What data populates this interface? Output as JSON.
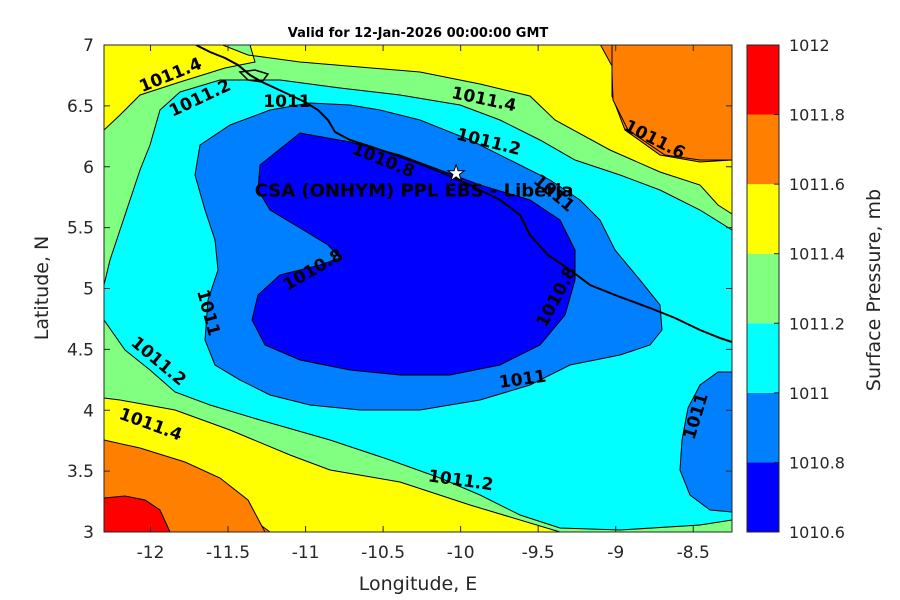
{
  "chart_data": {
    "type": "contour",
    "title": "Valid for 12-Jan-2026 00:00:00 GMT",
    "xlabel": "Longitude, E",
    "ylabel": "Latitude, N",
    "xlim": [
      -12.3,
      -8.25
    ],
    "ylim": [
      3,
      7
    ],
    "xticks": [
      "-12",
      "-11.5",
      "-11",
      "-10.5",
      "-10",
      "-9.5",
      "-9",
      "-8.5"
    ],
    "yticks": [
      "3",
      "3.5",
      "4",
      "4.5",
      "5",
      "5.5",
      "6",
      "6.5",
      "7"
    ],
    "colorbar": {
      "label": "Surface Pressure, mb",
      "ticks": [
        "1010.6",
        "1010.8",
        "1011",
        "1011.2",
        "1011.4",
        "1011.6",
        "1011.8",
        "1012"
      ],
      "levels": [
        1010.6,
        1010.8,
        1011.0,
        1011.2,
        1011.4,
        1011.6,
        1011.8,
        1012.0
      ],
      "colors": [
        "#0000ff",
        "#0080ff",
        "#00ffff",
        "#80ff80",
        "#ffff00",
        "#ff8000",
        "#ff0000",
        "#800000"
      ]
    },
    "contour_labels": [
      {
        "text": "1011.4",
        "lon": -11.87,
        "lat": 6.75,
        "angle": -22
      },
      {
        "text": "1011.2",
        "lon": -11.68,
        "lat": 6.56,
        "angle": -25
      },
      {
        "text": "1011",
        "lon": -11.12,
        "lat": 6.53,
        "angle": 0
      },
      {
        "text": "1011.4",
        "lon": -9.85,
        "lat": 6.55,
        "angle": 12
      },
      {
        "text": "1011.2",
        "lon": -9.82,
        "lat": 6.2,
        "angle": 14
      },
      {
        "text": "1011.6",
        "lon": -8.75,
        "lat": 6.22,
        "angle": 27
      },
      {
        "text": "1010.8",
        "lon": -10.5,
        "lat": 6.05,
        "angle": 22
      },
      {
        "text": "1011",
        "lon": -9.4,
        "lat": 5.78,
        "angle": 40
      },
      {
        "text": "1010.8",
        "lon": -10.95,
        "lat": 5.15,
        "angle": -30
      },
      {
        "text": "1010.8",
        "lon": -9.38,
        "lat": 4.93,
        "angle": -62
      },
      {
        "text": "1011",
        "lon": -11.63,
        "lat": 4.8,
        "angle": 75
      },
      {
        "text": "1011.2",
        "lon": -11.95,
        "lat": 4.4,
        "angle": 40
      },
      {
        "text": "1011",
        "lon": -9.6,
        "lat": 4.25,
        "angle": -8
      },
      {
        "text": "1011.4",
        "lon": -12.0,
        "lat": 3.88,
        "angle": 20
      },
      {
        "text": "1011",
        "lon": -8.48,
        "lat": 3.95,
        "angle": -73
      },
      {
        "text": "1011.2",
        "lon": -10.0,
        "lat": 3.42,
        "angle": 8
      }
    ],
    "annotation": {
      "text": "CSA (ONHYM) PPL EBS  - Liberia",
      "lon": -10.3,
      "lat": 5.92,
      "marker": "star"
    }
  }
}
